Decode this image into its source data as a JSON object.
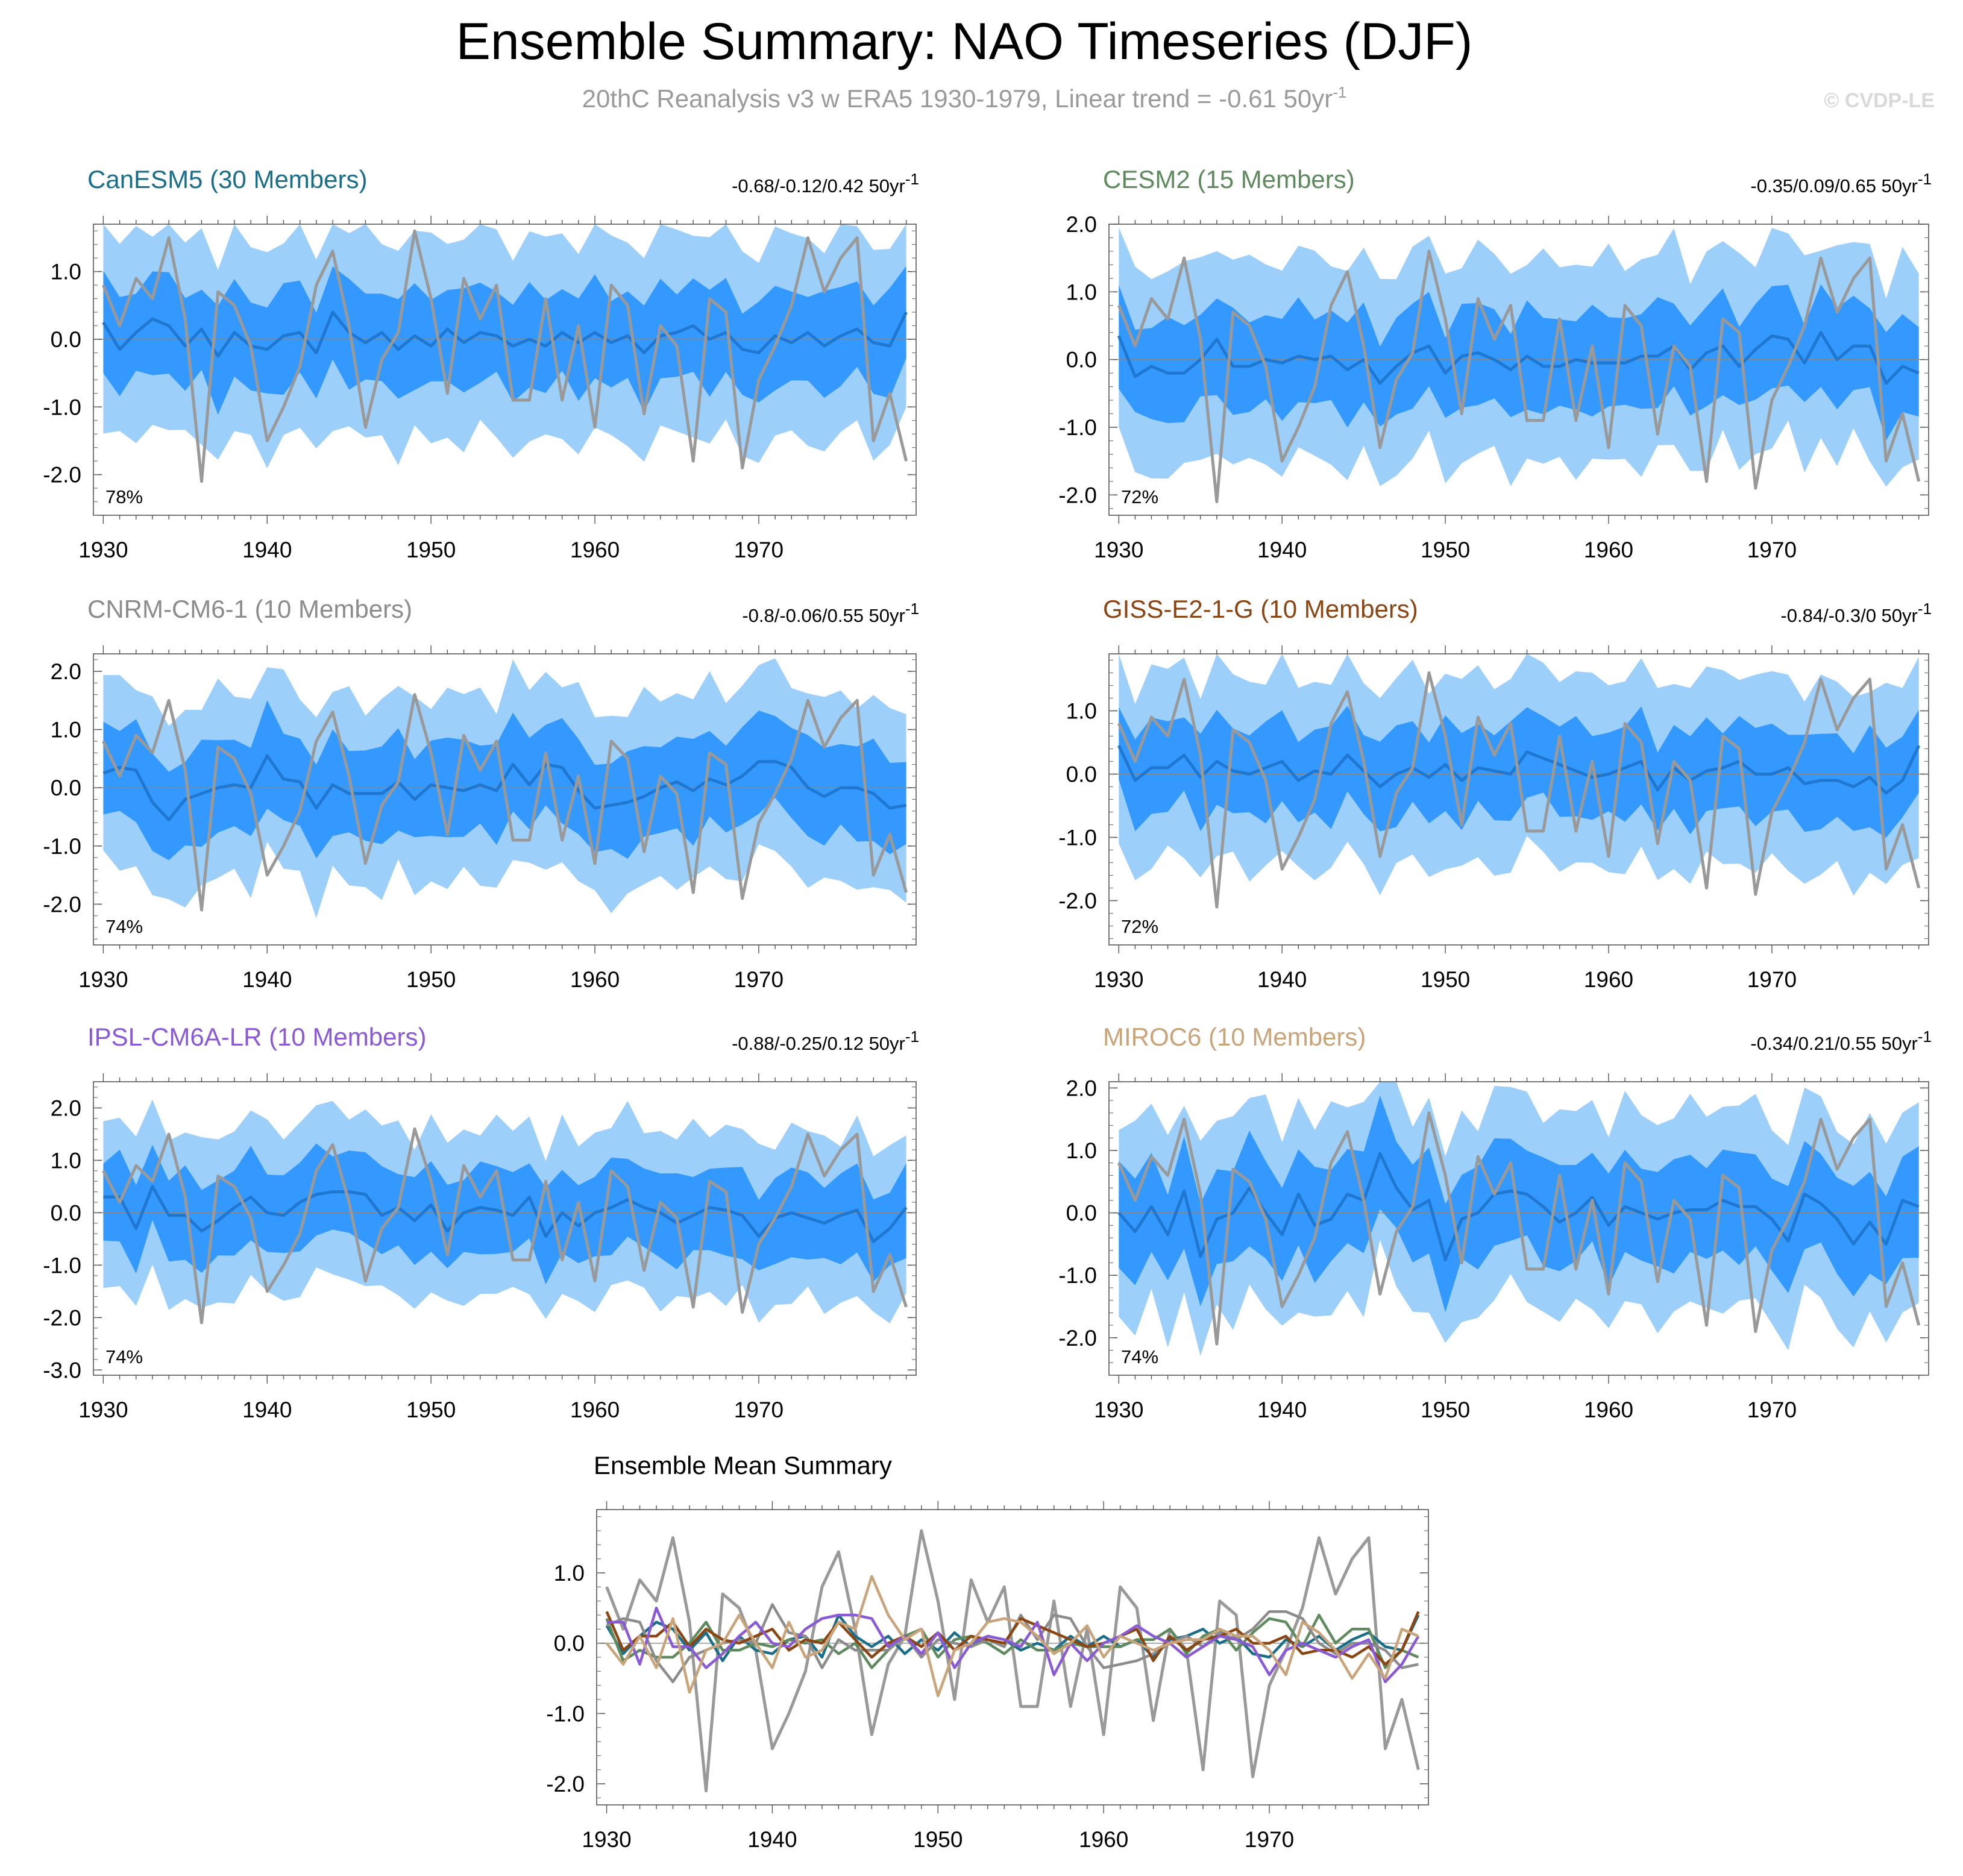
{
  "title": "Ensemble Summary: NAO Timeseries (DJF)",
  "subtitle": {
    "text": "20thC Reanalysis v3 w ERA5 1930-1979, Linear trend = -0.61 50yr",
    "superscript": "-1"
  },
  "copyright": "© CVDP-LE",
  "colors": {
    "band_outer": "#9ccffa",
    "band_inner": "#3399ff",
    "ensemble_mean_line": "#1f77d0",
    "observations": "#999999",
    "zero_line": "#888888"
  },
  "chart_data": {
    "type": "line",
    "years": [
      1930,
      1931,
      1932,
      1933,
      1934,
      1935,
      1936,
      1937,
      1938,
      1939,
      1940,
      1941,
      1942,
      1943,
      1944,
      1945,
      1946,
      1947,
      1948,
      1949,
      1950,
      1951,
      1952,
      1953,
      1954,
      1955,
      1956,
      1957,
      1958,
      1959,
      1960,
      1961,
      1962,
      1963,
      1964,
      1965,
      1966,
      1967,
      1968,
      1969,
      1970,
      1971,
      1972,
      1973,
      1974,
      1975,
      1976,
      1977,
      1978,
      1979
    ],
    "x_ticks": [
      "1930",
      "1940",
      "1950",
      "1960",
      "1970"
    ],
    "observed_series": {
      "name": "20thC Reanalysis v3 w ERA5",
      "values": [
        0.8,
        0.2,
        0.9,
        0.6,
        1.5,
        0.3,
        -2.1,
        0.7,
        0.5,
        -0.1,
        -1.5,
        -1.0,
        -0.4,
        0.8,
        1.3,
        0.2,
        -1.3,
        -0.3,
        0.1,
        1.6,
        0.6,
        -0.8,
        0.9,
        0.3,
        0.8,
        -0.9,
        -0.9,
        0.6,
        -0.9,
        0.2,
        -1.3,
        0.8,
        0.5,
        -1.1,
        0.2,
        -0.1,
        -1.8,
        0.6,
        0.4,
        -1.9,
        -0.6,
        -0.1,
        0.5,
        1.5,
        0.7,
        1.2,
        1.5,
        -1.5,
        -0.8,
        -1.8
      ]
    },
    "panels": [
      {
        "model": "CanESM5 (30 Members)",
        "color": "#1a6e8a",
        "trend": "-0.68/-0.12/0.42 50yr",
        "trend_sup": "-1",
        "percent": "78%",
        "y_ticks": [
          "1.0",
          "0.0",
          "-1.0",
          "-2.0"
        ],
        "ylim": [
          -2.6,
          1.7
        ],
        "mean": [
          0.25,
          -0.15,
          0.1,
          0.3,
          0.2,
          -0.1,
          0.15,
          -0.25,
          0.1,
          -0.1,
          -0.15,
          0.05,
          0.1,
          -0.2,
          0.4,
          0.1,
          -0.05,
          0.1,
          -0.15,
          0.05,
          -0.1,
          0.15,
          -0.05,
          0.1,
          0.05,
          -0.1,
          0.0,
          -0.1,
          0.1,
          -0.05,
          0.1,
          -0.05,
          0.05,
          -0.2,
          0.05,
          0.1,
          0.2,
          0.0,
          0.1,
          -0.15,
          -0.2,
          0.05,
          -0.05,
          0.1,
          -0.1,
          0.05,
          0.15,
          -0.05,
          -0.1,
          0.4
        ],
        "inner_halfwidth": 0.7,
        "outer_halfwidth": 1.5
      },
      {
        "model": "CESM2 (15 Members)",
        "color": "#5e8a5e",
        "trend": "-0.35/0.09/0.65 50yr",
        "trend_sup": "-1",
        "percent": "72%",
        "y_ticks": [
          "2.0",
          "1.0",
          "0.0",
          "-1.0",
          "-2.0"
        ],
        "ylim": [
          -2.3,
          2.0
        ],
        "mean": [
          0.35,
          -0.25,
          -0.1,
          -0.2,
          -0.2,
          0.0,
          0.3,
          -0.1,
          -0.1,
          0.0,
          -0.05,
          0.05,
          0.0,
          0.05,
          -0.15,
          0.0,
          -0.35,
          -0.1,
          0.1,
          0.2,
          -0.2,
          0.05,
          0.1,
          0.0,
          -0.15,
          0.05,
          -0.1,
          -0.1,
          0.0,
          -0.05,
          -0.05,
          -0.05,
          0.05,
          0.05,
          0.2,
          -0.15,
          0.1,
          0.2,
          -0.1,
          0.15,
          0.35,
          0.3,
          -0.05,
          0.4,
          0.0,
          0.2,
          0.2,
          -0.35,
          -0.1,
          -0.2
        ],
        "inner_halfwidth": 0.7,
        "outer_halfwidth": 1.5
      },
      {
        "model": "CNRM-CM6-1 (10 Members)",
        "color": "#8c8c8c",
        "trend": "-0.8/-0.06/0.55 50yr",
        "trend_sup": "-1",
        "percent": "74%",
        "y_ticks": [
          "2.0",
          "1.0",
          "0.0",
          "-1.0",
          "-2.0"
        ],
        "ylim": [
          -2.7,
          2.3
        ],
        "mean": [
          0.25,
          0.35,
          0.3,
          -0.25,
          -0.55,
          -0.2,
          -0.1,
          0.0,
          0.05,
          0.0,
          0.55,
          0.15,
          0.1,
          -0.35,
          0.05,
          -0.1,
          -0.1,
          -0.1,
          0.1,
          -0.2,
          0.05,
          0.0,
          -0.05,
          0.05,
          -0.05,
          0.4,
          0.05,
          0.4,
          0.35,
          -0.05,
          -0.35,
          -0.3,
          -0.25,
          -0.15,
          0.0,
          0.1,
          -0.05,
          0.15,
          0.05,
          0.2,
          0.45,
          0.45,
          0.35,
          0.0,
          -0.15,
          0.0,
          0.0,
          -0.1,
          -0.35,
          -0.3
        ],
        "inner_halfwidth": 0.8,
        "outer_halfwidth": 1.6
      },
      {
        "model": "GISS-E2-1-G (10 Members)",
        "color": "#8b4513",
        "trend": "-0.84/-0.3/0 50yr",
        "trend_sup": "-1",
        "percent": "72%",
        "y_ticks": [
          "1.0",
          "0.0",
          "-1.0",
          "-2.0"
        ],
        "ylim": [
          -2.7,
          1.9
        ],
        "mean": [
          0.45,
          -0.1,
          0.1,
          0.1,
          0.3,
          -0.05,
          0.2,
          0.05,
          0.0,
          0.1,
          0.2,
          -0.1,
          0.05,
          0.0,
          0.3,
          0.05,
          -0.2,
          0.0,
          0.1,
          -0.05,
          0.15,
          -0.1,
          0.1,
          0.05,
          0.0,
          0.35,
          0.25,
          0.15,
          0.05,
          -0.05,
          0.0,
          0.1,
          0.2,
          -0.25,
          0.1,
          -0.1,
          0.05,
          0.1,
          0.2,
          0.0,
          0.0,
          0.1,
          -0.15,
          -0.1,
          -0.1,
          -0.2,
          -0.05,
          -0.3,
          -0.1,
          0.45
        ],
        "inner_halfwidth": 0.7,
        "outer_halfwidth": 1.5
      },
      {
        "model": "IPSL-CM6A-LR (10 Members)",
        "color": "#8a5ad6",
        "trend": "-0.88/-0.25/0.12 50yr",
        "trend_sup": "-1",
        "percent": "74%",
        "y_ticks": [
          "2.0",
          "1.0",
          "0.0",
          "-1.0",
          "-2.0",
          "-3.0"
        ],
        "ylim": [
          -3.1,
          2.5
        ],
        "mean": [
          0.3,
          0.3,
          -0.3,
          0.5,
          -0.05,
          -0.05,
          -0.35,
          -0.15,
          0.1,
          0.3,
          0.0,
          -0.05,
          0.2,
          0.35,
          0.4,
          0.4,
          0.35,
          -0.05,
          0.1,
          -0.15,
          0.15,
          -0.35,
          0.0,
          0.1,
          0.05,
          -0.05,
          0.3,
          -0.45,
          0.0,
          -0.25,
          0.0,
          0.1,
          0.25,
          0.1,
          0.0,
          -0.2,
          -0.05,
          0.1,
          0.05,
          -0.05,
          -0.45,
          -0.1,
          0.0,
          -0.1,
          -0.2,
          -0.05,
          0.05,
          -0.55,
          -0.3,
          0.1
        ],
        "inner_halfwidth": 0.8,
        "outer_halfwidth": 1.6
      },
      {
        "model": "MIROC6 (10 Members)",
        "color": "#c9a47a",
        "trend": "-0.34/0.21/0.55 50yr",
        "trend_sup": "-1",
        "percent": "74%",
        "y_ticks": [
          "2.0",
          "1.0",
          "0.0",
          "-1.0",
          "-2.0"
        ],
        "ylim": [
          -2.6,
          2.1
        ],
        "mean": [
          0.0,
          -0.3,
          0.1,
          -0.35,
          0.35,
          -0.7,
          -0.1,
          0.0,
          0.4,
          0.0,
          -0.35,
          0.3,
          -0.2,
          -0.1,
          0.3,
          0.2,
          0.95,
          0.4,
          0.05,
          0.2,
          -0.75,
          -0.1,
          0.0,
          0.3,
          0.35,
          0.3,
          0.1,
          -0.15,
          0.0,
          0.25,
          -0.2,
          0.1,
          0.0,
          -0.1,
          0.0,
          0.05,
          0.05,
          0.2,
          0.1,
          0.1,
          -0.1,
          -0.45,
          0.3,
          0.15,
          -0.1,
          -0.5,
          -0.15,
          -0.5,
          0.2,
          0.1
        ],
        "inner_halfwidth": 0.8,
        "outer_halfwidth": 1.6
      }
    ],
    "summary": {
      "title": "Ensemble Mean Summary",
      "y_ticks": [
        "1.0",
        "0.0",
        "-1.0",
        "-2.0"
      ],
      "ylim": [
        -2.3,
        1.9
      ]
    }
  }
}
